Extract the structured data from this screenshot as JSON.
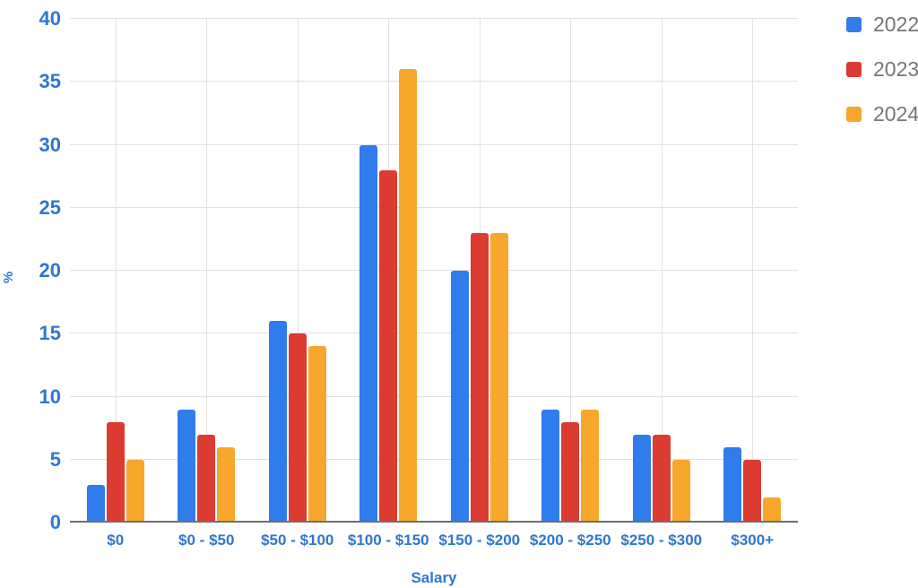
{
  "chart_data": {
    "type": "bar",
    "title": "",
    "xlabel": "Salary",
    "ylabel": "%",
    "categories": [
      "$0",
      "$0 - $50",
      "$50 - $100",
      "$100 - $150",
      "$150 - $200",
      "$200 - $250",
      "$250 - $300",
      "$300+"
    ],
    "series": [
      {
        "name": "2022",
        "color": "#2f7cec",
        "values": [
          3,
          9,
          16,
          30,
          20,
          9,
          7,
          6
        ]
      },
      {
        "name": "2023",
        "color": "#db3b31",
        "values": [
          8,
          7,
          15,
          28,
          23,
          8,
          7,
          5
        ]
      },
      {
        "name": "2024",
        "color": "#f6a72c",
        "values": [
          5,
          6,
          14,
          36,
          23,
          9,
          5,
          2
        ]
      }
    ],
    "ylim": [
      0,
      40
    ],
    "ytick_step": 5,
    "grid": true,
    "legend_position": "right-top"
  },
  "colors": {
    "axis_label": "#2e77d0",
    "legend_text": "#757575",
    "gridline": "#e1e1e1",
    "baseline": "#6e6e6e",
    "background": "#ffffff"
  }
}
